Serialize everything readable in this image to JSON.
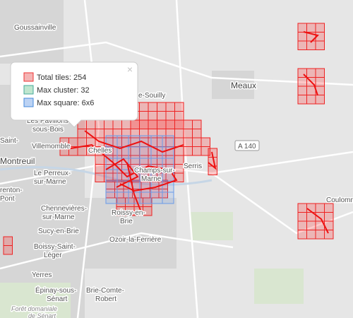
{
  "legend": {
    "items": [
      {
        "label": "Total tiles: 254"
      },
      {
        "label": "Max cluster: 32"
      },
      {
        "label": "Max square: 6x6"
      }
    ],
    "close": "×"
  },
  "places": [
    "Goussainville",
    "Meaux",
    "e-Souilly",
    "Les Pavillons-",
    "sous-Bois",
    "Saint-",
    "Villemomble",
    "Montreuil",
    "Le Perreux-",
    "sur-Marne",
    "Chelles",
    "Champs-sur-",
    "Marne",
    "Serris",
    "A 140",
    "Coulomm",
    "renton-",
    "Pont",
    "Chennevières-",
    "sur-Marne",
    "Sucy-en-Brie",
    "Boissy-Saint-",
    "Léger",
    "Roissy-en-",
    "Brie",
    "Ozoir-la-Ferrière",
    "Yerres",
    "Épinay-sous-",
    "Sénart",
    "Brie-Comte-",
    "Robert",
    "Forêt domaniale",
    "de Sénart"
  ]
}
